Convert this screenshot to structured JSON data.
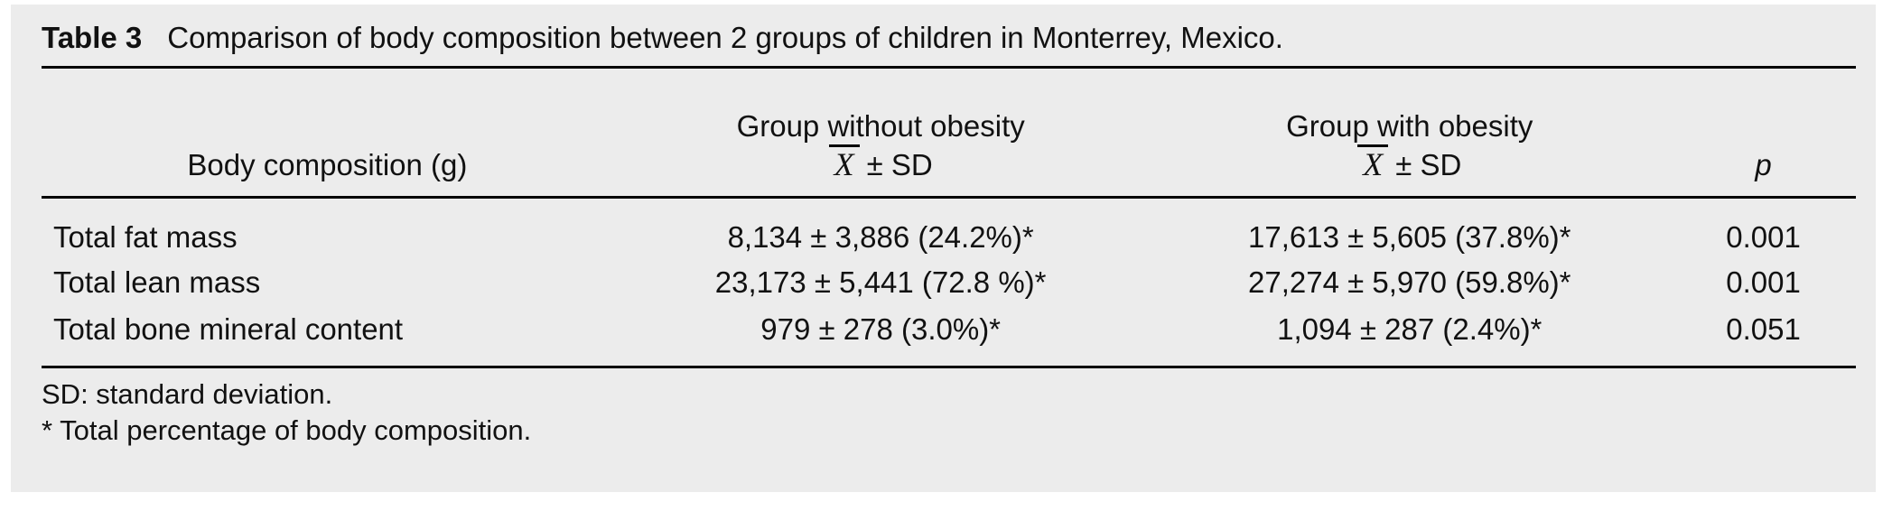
{
  "title": {
    "label": "Table 3",
    "text": "Comparison of body composition between 2 groups of children in Monterrey, Mexico."
  },
  "table": {
    "col1_header": "Body composition (g)",
    "group_without_header": "Group without obesity",
    "group_with_header": "Group with obesity",
    "mean_symbol": "X",
    "mean_sd_suffix": "± SD",
    "p_header": "p",
    "rows": [
      {
        "label": "Total fat mass",
        "group_without": "8,134 ± 3,886 (24.2%)*",
        "group_with": "17,613 ± 5,605 (37.8%)*",
        "p": "0.001"
      },
      {
        "label": "Total lean mass",
        "group_without": "23,173 ± 5,441 (72.8 %)*",
        "group_with": "27,274 ± 5,970 (59.8%)*",
        "p": "0.001"
      },
      {
        "label": "Total bone mineral content",
        "group_without": "979 ± 278 (3.0%)*",
        "group_with": "1,094 ± 287 (2.4%)*",
        "p": "0.051"
      }
    ]
  },
  "footnotes": [
    "SD: standard deviation.",
    "* Total percentage of body composition."
  ],
  "colors": {
    "panel_background": "#ececec",
    "text": "#111111",
    "rule": "#000000"
  }
}
